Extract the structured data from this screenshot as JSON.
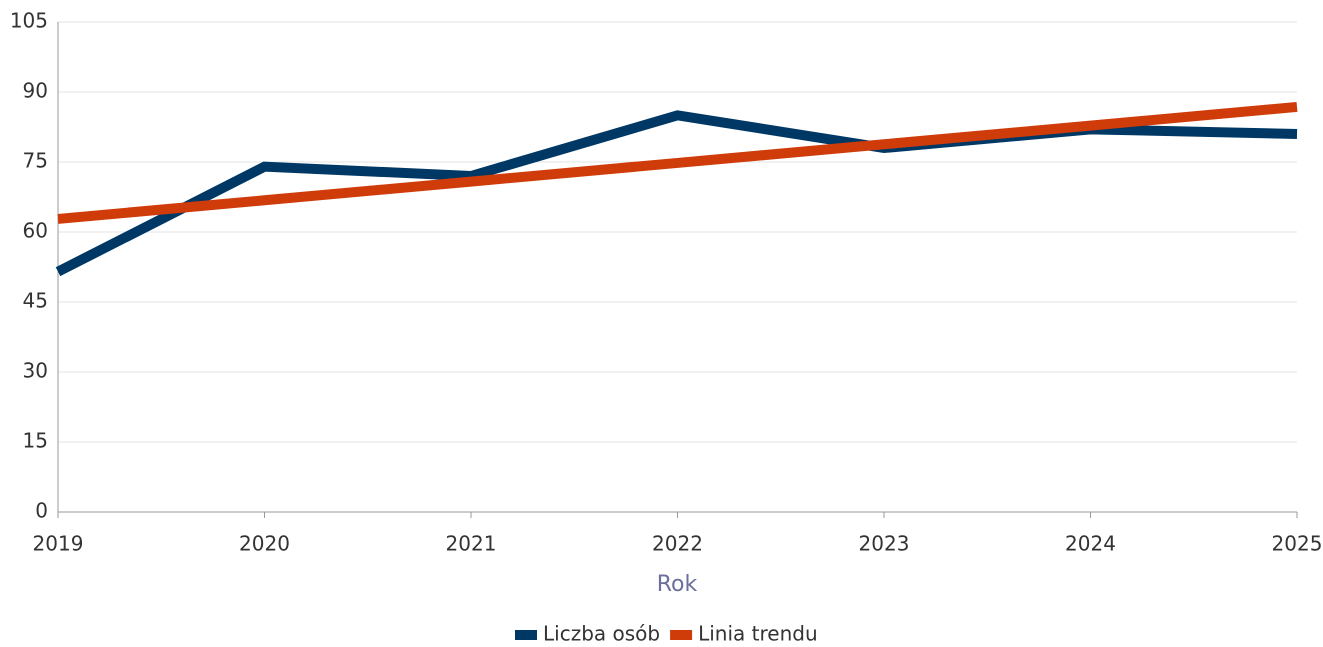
{
  "chart_data": {
    "type": "line",
    "x_label": "Rok",
    "x": [
      2019,
      2020,
      2021,
      2022,
      2023,
      2024,
      2025
    ],
    "series": [
      {
        "name": "Liczba osób",
        "color": "#003865",
        "values": [
          51.5,
          74,
          72,
          85,
          78,
          82,
          81
        ]
      },
      {
        "name": "Linia trendu",
        "color": "#d03b0a",
        "values": [
          62.8,
          66.8,
          70.8,
          74.8,
          78.8,
          82.8,
          86.8
        ]
      }
    ],
    "xlim": [
      2019,
      2025
    ],
    "xticks": [
      2019,
      2020,
      2021,
      2022,
      2023,
      2024,
      2025
    ],
    "ylim": [
      0,
      105
    ],
    "yticks": [
      0,
      15,
      30,
      45,
      60,
      75,
      90,
      105
    ],
    "grid": true,
    "legend": "bottom"
  }
}
